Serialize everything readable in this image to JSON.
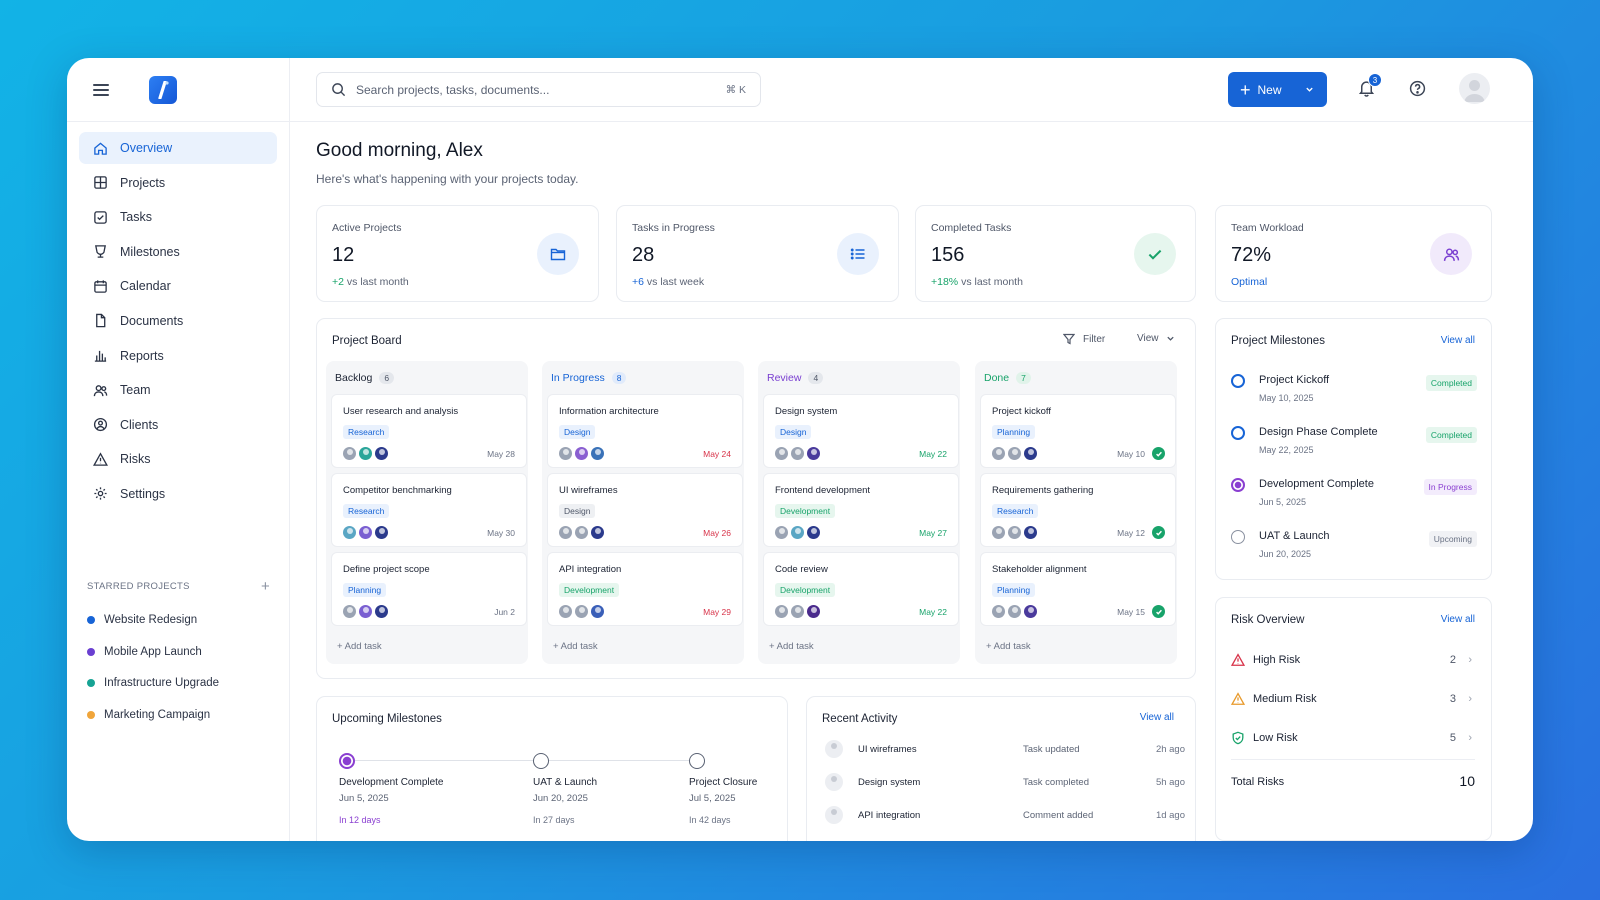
{
  "app": {
    "search_placeholder": "Search projects, tasks, documents...",
    "search_shortcut": "⌘ K",
    "new_label": "New",
    "notification_count": "3"
  },
  "colors": {
    "accent": "#1764d6",
    "success": "#18a36a",
    "danger": "#d8344a",
    "purple": "#8a3fd1",
    "warning": "#e89a2c"
  },
  "sidebar": {
    "items": [
      {
        "label": "Overview",
        "icon": "home-icon"
      },
      {
        "label": "Projects",
        "icon": "grid-icon"
      },
      {
        "label": "Tasks",
        "icon": "checkbox-icon"
      },
      {
        "label": "Milestones",
        "icon": "trophy-icon"
      },
      {
        "label": "Calendar",
        "icon": "calendar-icon"
      },
      {
        "label": "Documents",
        "icon": "document-icon"
      },
      {
        "label": "Reports",
        "icon": "bar-chart-icon"
      },
      {
        "label": "Team",
        "icon": "users-icon"
      },
      {
        "label": "Clients",
        "icon": "user-circle-icon"
      },
      {
        "label": "Risks",
        "icon": "warning-icon"
      },
      {
        "label": "Settings",
        "icon": "gear-icon"
      }
    ],
    "starred_heading": "STARRED PROJECTS",
    "starred": [
      {
        "label": "Website Redesign",
        "color": "#1764d6"
      },
      {
        "label": "Mobile App Launch",
        "color": "#6a3fd1"
      },
      {
        "label": "Infrastructure Upgrade",
        "color": "#16a394"
      },
      {
        "label": "Marketing Campaign",
        "color": "#f0a53a"
      }
    ]
  },
  "greeting": {
    "title": "Good morning, Alex",
    "subtitle": "Here's what's happening with your projects today."
  },
  "stats": [
    {
      "label": "Active Projects",
      "value": "12",
      "delta": "+2",
      "delta_text": "vs last month",
      "icon": "folder-icon"
    },
    {
      "label": "Tasks in Progress",
      "value": "28",
      "delta": "+6",
      "delta_text": "vs last week",
      "icon": "list-icon"
    },
    {
      "label": "Completed Tasks",
      "value": "156",
      "delta": "+18%",
      "delta_text": "vs last month",
      "icon": "check-icon"
    },
    {
      "label": "Team Workload",
      "value": "72%",
      "delta": "Optimal",
      "delta_text": "",
      "icon": "users-icon"
    }
  ],
  "board": {
    "title": "Project Board",
    "filter_label": "Filter",
    "view_label": "View",
    "add_task_label": "+ Add task",
    "columns": [
      {
        "name": "Backlog",
        "count": "6",
        "tasks": [
          {
            "title": "User research and analysis",
            "tag": "Research",
            "date": "May 28"
          },
          {
            "title": "Competitor benchmarking",
            "tag": "Research",
            "date": "May 30"
          },
          {
            "title": "Define project scope",
            "tag": "Planning",
            "date": "Jun 2"
          }
        ]
      },
      {
        "name": "In Progress",
        "count": "8",
        "tasks": [
          {
            "title": "Information architecture",
            "tag": "Design",
            "date": "May 24"
          },
          {
            "title": "UI wireframes",
            "tag": "Design",
            "date": "May 26"
          },
          {
            "title": "API integration",
            "tag": "Development",
            "date": "May 29"
          }
        ]
      },
      {
        "name": "Review",
        "count": "4",
        "tasks": [
          {
            "title": "Design system",
            "tag": "Design",
            "date": "May 22"
          },
          {
            "title": "Frontend development",
            "tag": "Development",
            "date": "May 27"
          },
          {
            "title": "Code review",
            "tag": "Development",
            "date": "May 22"
          }
        ]
      },
      {
        "name": "Done",
        "count": "7",
        "tasks": [
          {
            "title": "Project kickoff",
            "tag": "Planning",
            "date": "May 10"
          },
          {
            "title": "Requirements gathering",
            "tag": "Research",
            "date": "May 12"
          },
          {
            "title": "Stakeholder alignment",
            "tag": "Planning",
            "date": "May 15"
          }
        ]
      }
    ]
  },
  "milestones": {
    "title": "Project Milestones",
    "view_all": "View all",
    "items": [
      {
        "name": "Project Kickoff",
        "date": "May 10, 2025",
        "status": "Completed"
      },
      {
        "name": "Design Phase Complete",
        "date": "May 22, 2025",
        "status": "Completed"
      },
      {
        "name": "Development Complete",
        "date": "Jun 5, 2025",
        "status": "In Progress"
      },
      {
        "name": "UAT & Launch",
        "date": "Jun 20, 2025",
        "status": "Upcoming"
      }
    ]
  },
  "risk": {
    "title": "Risk Overview",
    "view_all": "View all",
    "items": [
      {
        "label": "High Risk",
        "count": "2",
        "icon": "warning-icon"
      },
      {
        "label": "Medium Risk",
        "count": "3",
        "icon": "warning-icon"
      },
      {
        "label": "Low Risk",
        "count": "5",
        "icon": "shield-check-icon"
      }
    ],
    "total_label": "Total Risks",
    "total": "10"
  },
  "upcoming": {
    "title": "Upcoming Milestones",
    "items": [
      {
        "name": "Development Complete",
        "date": "Jun 5, 2025",
        "in": "In 12 days"
      },
      {
        "name": "UAT & Launch",
        "date": "Jun 20, 2025",
        "in": "In 27 days"
      },
      {
        "name": "Project Closure",
        "date": "Jul 5, 2025",
        "in": "In 42 days"
      }
    ]
  },
  "activity": {
    "title": "Recent Activity",
    "view_all": "View all",
    "items": [
      {
        "name": "UI wireframes",
        "action": "Task updated",
        "time": "2h ago"
      },
      {
        "name": "Design system",
        "action": "Task completed",
        "time": "5h ago"
      },
      {
        "name": "API integration",
        "action": "Comment added",
        "time": "1d ago"
      }
    ]
  }
}
